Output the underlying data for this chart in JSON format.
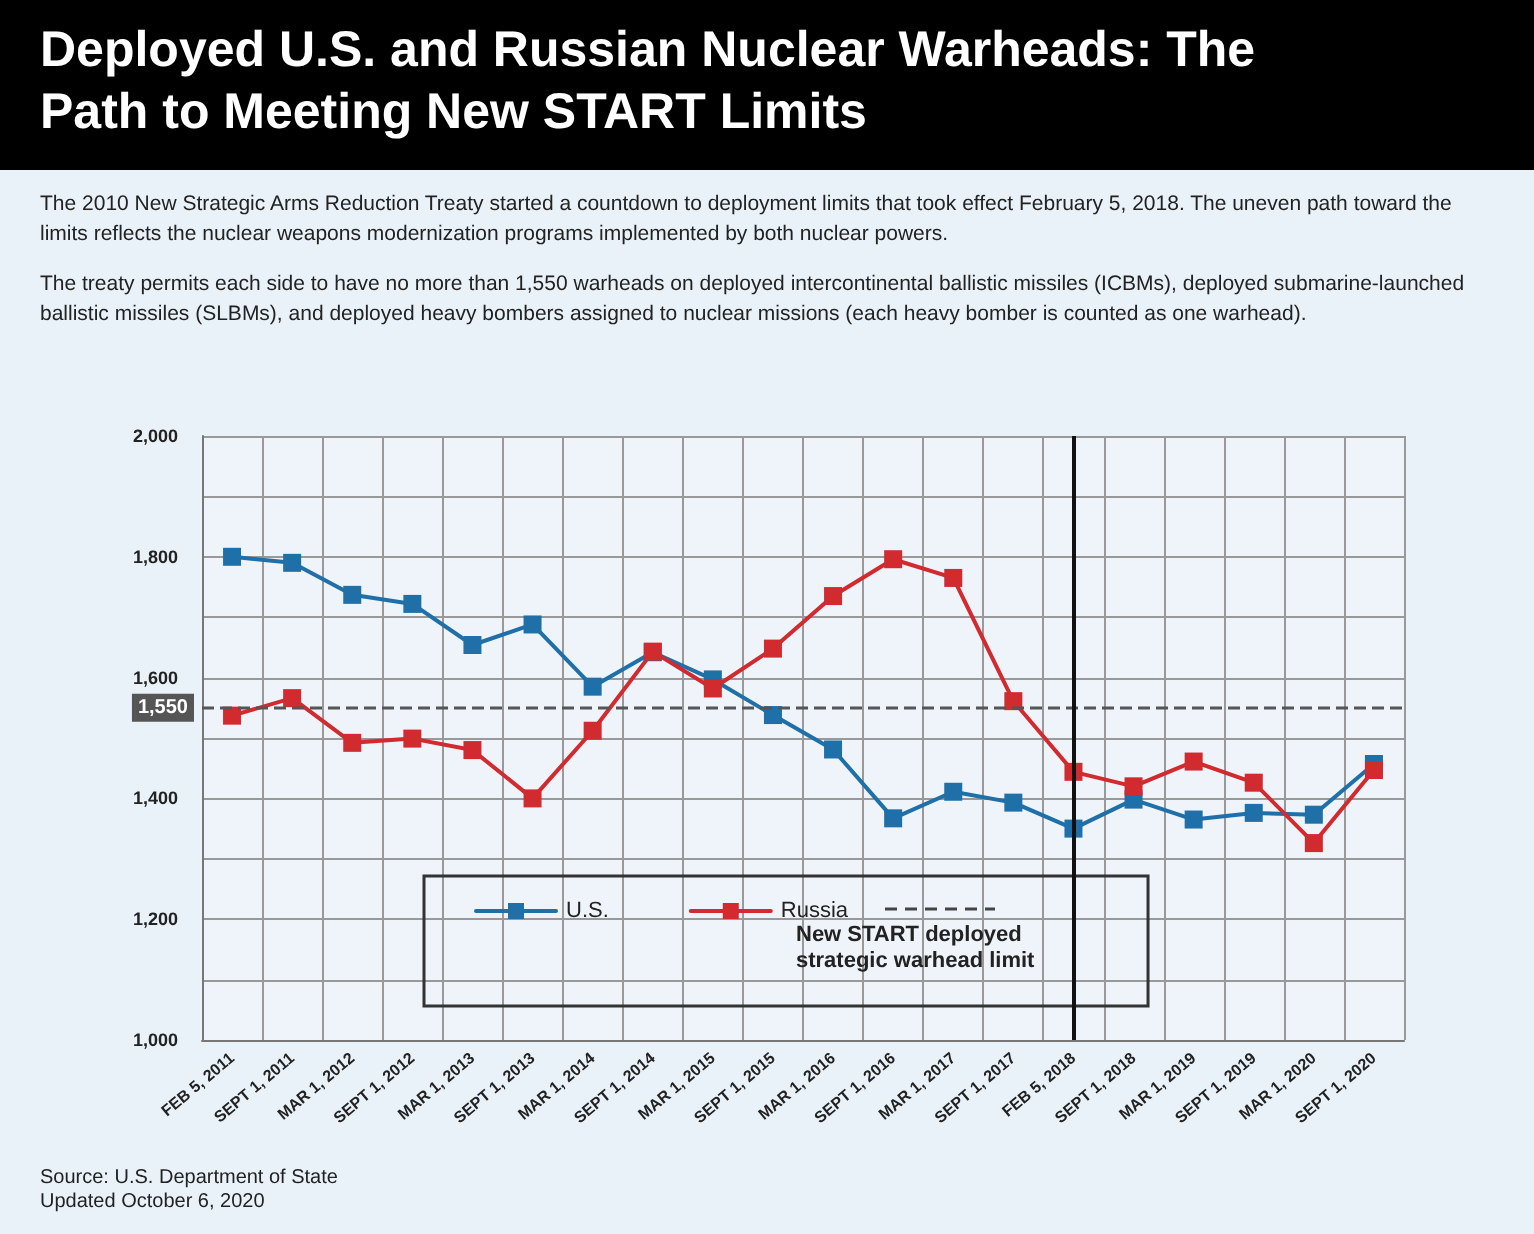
{
  "chart_data": {
    "type": "line",
    "title": "Deployed U.S. and Russian Nuclear Warheads: The Path to Meeting New START Limits",
    "subtitle": "The 2010 New Strategic Arms Reduction Treaty started a countdown to deployment limits that took effect February 5, 2018. The uneven path toward the limits reflects the nuclear weapons modernization programs implemented by both nuclear powers.\nThe treaty permits each side to have no more than 1,550 warheads on deployed intercontinental ballistic missiles (ICBMs), deployed submarine-launched ballistic missiles (SLBMs), and deployed heavy bombers assigned to nuclear missions (each heavy bomber is counted as one warhead).",
    "categories": [
      "FEB 5, 2011",
      "SEPT 1, 2011",
      "MAR 1, 2012",
      "SEPT 1, 2012",
      "MAR 1, 2013",
      "SEPT 1, 2013",
      "MAR 1, 2014",
      "SEPT 1, 2014",
      "MAR 1, 2015",
      "SEPT 1, 2015",
      "MAR 1, 2016",
      "SEPT 1, 2016",
      "MAR 1, 2017",
      "SEPT 1, 2017",
      "FEB 5, 2018",
      "SEPT 1, 2018",
      "MAR 1, 2019",
      "SEPT 1, 2019",
      "MAR 1, 2020",
      "SEPT 1, 2020"
    ],
    "series": [
      {
        "name": "U.S.",
        "color": "#1f6fa8",
        "values": [
          1800,
          1790,
          1737,
          1722,
          1654,
          1688,
          1585,
          1642,
          1597,
          1538,
          1481,
          1367,
          1411,
          1393,
          1350,
          1398,
          1365,
          1376,
          1373,
          1457
        ]
      },
      {
        "name": "Russia",
        "color": "#d12a2f",
        "values": [
          1537,
          1566,
          1492,
          1499,
          1480,
          1400,
          1512,
          1643,
          1582,
          1648,
          1735,
          1796,
          1765,
          1561,
          1444,
          1420,
          1461,
          1426,
          1326,
          1447
        ]
      }
    ],
    "ylim": [
      1000,
      2000
    ],
    "yticks": [
      {
        "value": 1000,
        "label": "1,000"
      },
      {
        "value": 1100,
        "label": null
      },
      {
        "value": 1200,
        "label": "1,200"
      },
      {
        "value": 1300,
        "label": null
      },
      {
        "value": 1400,
        "label": "1,400"
      },
      {
        "value": 1500,
        "label": null
      },
      {
        "value": 1600,
        "label": "1,600"
      },
      {
        "value": 1700,
        "label": null
      },
      {
        "value": 1800,
        "label": "1,800"
      },
      {
        "value": 1900,
        "label": null
      },
      {
        "value": 2000,
        "label": "2,000"
      }
    ],
    "ref_lines": [
      {
        "axis": "y",
        "value": 1550,
        "label": "1,550",
        "color": "#555555",
        "line_style": "dashed"
      },
      {
        "axis": "x",
        "value": "FEB 5, 2018",
        "color": "#111111",
        "line_style": "solid"
      }
    ],
    "annotations": [
      "New START deployed strategic warhead limit",
      "Source: U.S. Department of State",
      "Updated October 6, 2020"
    ],
    "grid": true,
    "legend": "bottom",
    "marker": "square",
    "line_style": "solid"
  }
}
